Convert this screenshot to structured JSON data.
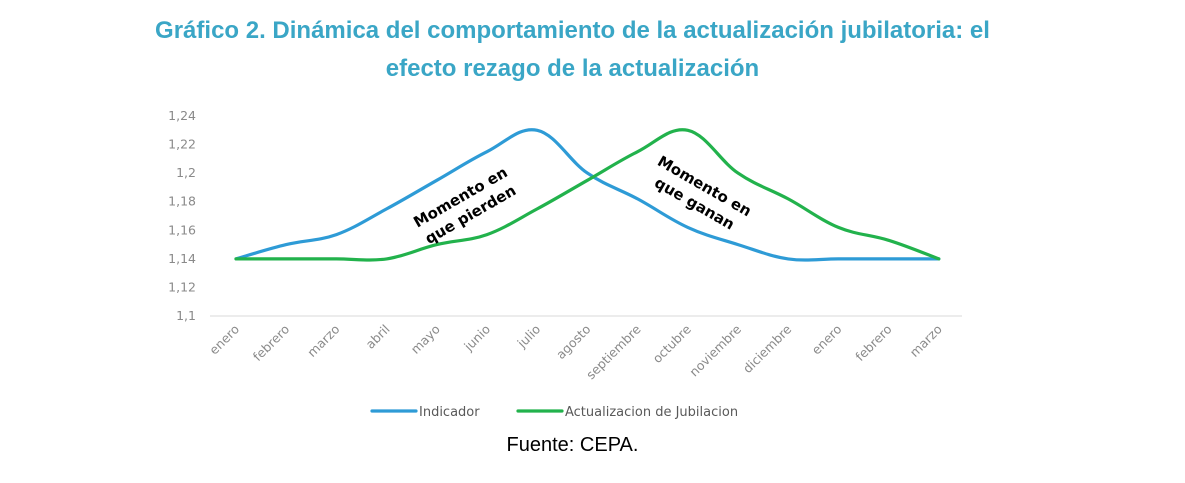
{
  "title": {
    "line1": "Gráfico 2. Dinámica del comportamiento de la actualización jubilatoria: el",
    "line2": "efecto rezago de la actualización"
  },
  "source": "Fuente: CEPA.",
  "chart_data": {
    "type": "line",
    "categories": [
      "enero",
      "febrero",
      "marzo",
      "abril",
      "mayo",
      "junio",
      "julio",
      "agosto",
      "septiembre",
      "octubre",
      "noviembre",
      "diciembre",
      "enero",
      "febrero",
      "marzo"
    ],
    "ylim": [
      1.1,
      1.24
    ],
    "yticks": [
      "1,1",
      "1,12",
      "1,14",
      "1,16",
      "1,18",
      "1,2",
      "1,22",
      "1,24"
    ],
    "series": [
      {
        "name": "Indicador",
        "color": "#2e9bd6",
        "values": [
          1.14,
          1.15,
          1.157,
          1.175,
          1.195,
          1.215,
          1.23,
          1.2,
          1.182,
          1.162,
          1.15,
          1.14,
          1.14,
          1.14,
          1.14
        ]
      },
      {
        "name": "Actualizacion de Jubilacion",
        "color": "#22b24c",
        "values": [
          1.14,
          1.14,
          1.14,
          1.14,
          1.15,
          1.157,
          1.175,
          1.195,
          1.215,
          1.23,
          1.2,
          1.182,
          1.162,
          1.153,
          1.14
        ]
      }
    ],
    "annotations": [
      {
        "lines": [
          "Momento en",
          "que pierden"
        ],
        "rotation": -30
      },
      {
        "lines": [
          "Momento en",
          "que ganan"
        ],
        "rotation": 30
      }
    ]
  }
}
